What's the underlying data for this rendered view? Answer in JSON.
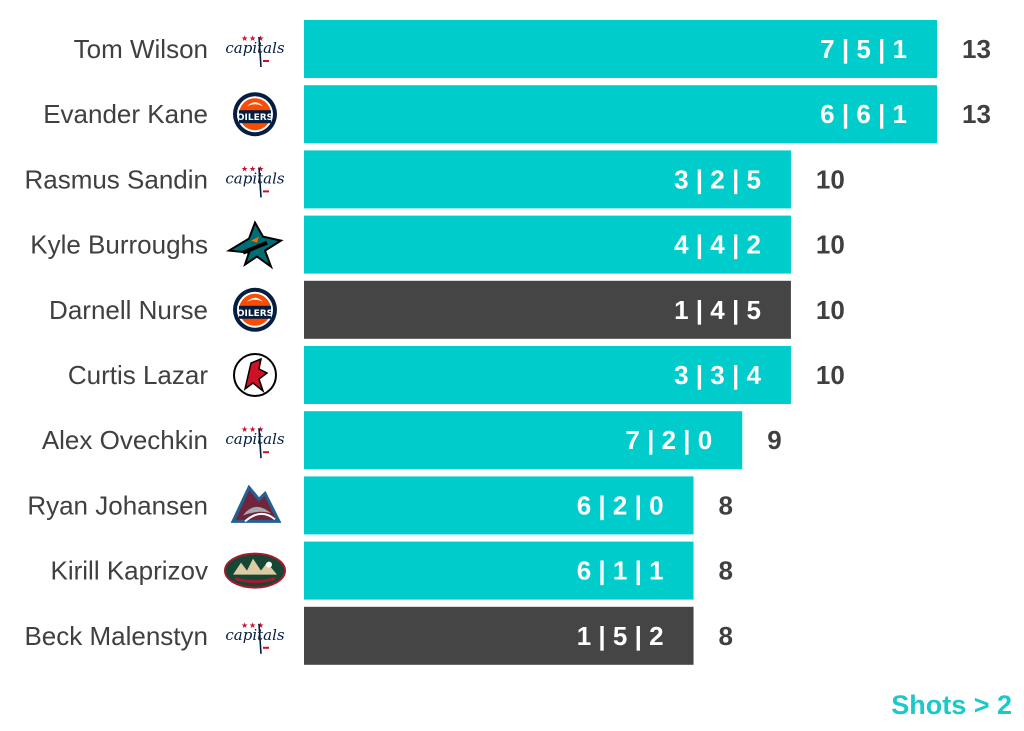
{
  "colors": {
    "highlight": "#00cccc",
    "dark": "#454545",
    "text": "#404040",
    "note": "#1cc8c8"
  },
  "note": "Shots > 2",
  "chart_data": {
    "type": "bar",
    "orientation": "horizontal",
    "xlim": [
      0,
      13
    ],
    "grid": false,
    "categories": [
      "Tom Wilson",
      "Evander Kane",
      "Rasmus Sandin",
      "Kyle Burroughs",
      "Darnell Nurse",
      "Curtis Lazar",
      "Alex Ovechkin",
      "Ryan Johansen",
      "Kirill Kaprizov",
      "Beck Malenstyn"
    ],
    "values": [
      13,
      13,
      10,
      10,
      10,
      10,
      9,
      8,
      8,
      8
    ],
    "bars": [
      {
        "name": "Tom Wilson",
        "team_icon": "capitals-logo-icon",
        "total": 13,
        "breakdown": "7 | 5 | 1",
        "style": "highlight"
      },
      {
        "name": "Evander Kane",
        "team_icon": "oilers-logo-icon",
        "total": 13,
        "breakdown": "6 | 6 | 1",
        "style": "highlight"
      },
      {
        "name": "Rasmus Sandin",
        "team_icon": "capitals-logo-icon",
        "total": 10,
        "breakdown": "3 | 2 | 5",
        "style": "highlight"
      },
      {
        "name": "Kyle Burroughs",
        "team_icon": "sharks-logo-icon",
        "total": 10,
        "breakdown": "4 | 4 | 2",
        "style": "highlight"
      },
      {
        "name": "Darnell Nurse",
        "team_icon": "oilers-logo-icon",
        "total": 10,
        "breakdown": "1 | 4 | 5",
        "style": "dark"
      },
      {
        "name": "Curtis Lazar",
        "team_icon": "devils-logo-icon",
        "total": 10,
        "breakdown": "3 | 3 | 4",
        "style": "highlight"
      },
      {
        "name": "Alex Ovechkin",
        "team_icon": "capitals-logo-icon",
        "total": 9,
        "breakdown": "7 | 2 | 0",
        "style": "highlight"
      },
      {
        "name": "Ryan Johansen",
        "team_icon": "avalanche-logo-icon",
        "total": 8,
        "breakdown": "6 | 2 | 0",
        "style": "highlight"
      },
      {
        "name": "Kirill Kaprizov",
        "team_icon": "wild-logo-icon",
        "total": 8,
        "breakdown": "6 | 1 | 1",
        "style": "highlight"
      },
      {
        "name": "Beck Malenstyn",
        "team_icon": "capitals-logo-icon",
        "total": 8,
        "breakdown": "1 | 5 | 2",
        "style": "dark"
      }
    ]
  }
}
